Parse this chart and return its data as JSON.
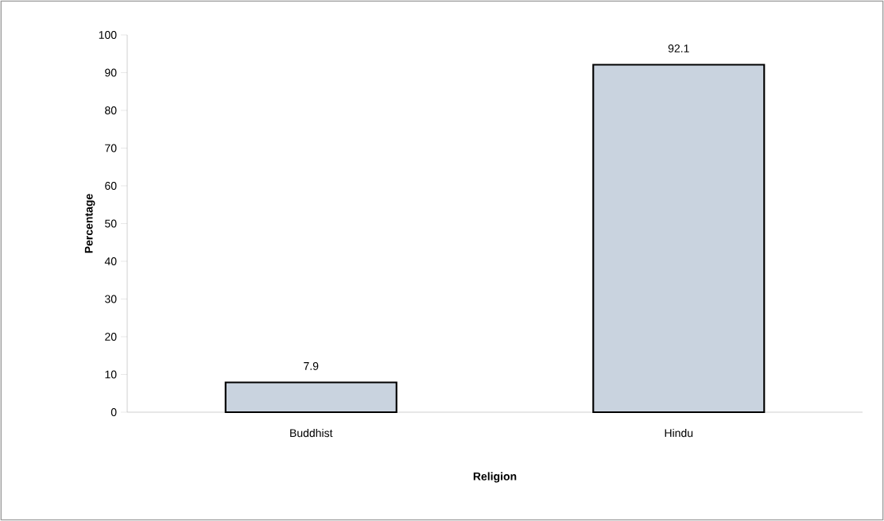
{
  "chart_data": {
    "type": "bar",
    "categories": [
      "Buddhist",
      "Hindu"
    ],
    "values": [
      7.9,
      92.1
    ],
    "color": "#c9d3df",
    "xlabel": "Religion",
    "ylabel": "Percentage",
    "ylim": [
      0,
      100
    ],
    "yticks": [
      0,
      10,
      20,
      30,
      40,
      50,
      60,
      70,
      80,
      90,
      100
    ],
    "data_labels": true,
    "grid": false
  }
}
